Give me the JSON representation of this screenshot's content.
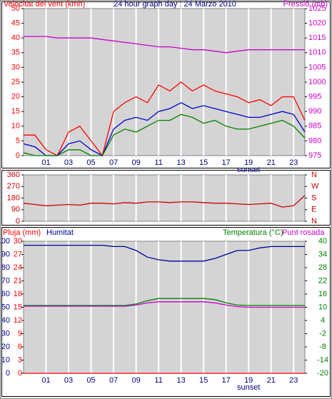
{
  "chart_data": [
    {
      "type": "line",
      "title": "24 hour graph day : 24 Marzo 2010",
      "ylabel": "Velocitat del vent (kmh)",
      "y2label": "Pressió (mb)",
      "ycolor": "#ff0000",
      "y2color": "#cc00cc",
      "x": [
        -1,
        0,
        1,
        2,
        3,
        4,
        5,
        6,
        7,
        8,
        9,
        10,
        11,
        12,
        13,
        14,
        15,
        16,
        17,
        18,
        19,
        20,
        21,
        22,
        23,
        24
      ],
      "xlim": [
        -1,
        24
      ],
      "xticks": [
        {
          "value": 1,
          "label": "01"
        },
        {
          "value": 3,
          "label": "03"
        },
        {
          "value": 5,
          "label": "05"
        },
        {
          "value": 7,
          "label": "07"
        },
        {
          "value": 9,
          "label": "09"
        },
        11,
        13,
        15,
        17,
        19,
        21,
        23
      ],
      "ylim": [
        0,
        50
      ],
      "yticks": [
        0,
        5,
        10,
        15,
        20,
        25,
        30,
        35,
        40,
        45,
        50
      ],
      "y2lim": [
        975,
        1025
      ],
      "y2ticks": [
        975,
        980,
        985,
        990,
        995,
        1000,
        1005,
        1010,
        1015,
        1020,
        1025
      ],
      "annotations": [
        {
          "text": "sunset",
          "x": 19
        }
      ],
      "series": [
        {
          "color": "#ff0000",
          "values": [
            7,
            7,
            2,
            0,
            8,
            10,
            5,
            0,
            15,
            18,
            20,
            18,
            24,
            22,
            25,
            22,
            24,
            22,
            21,
            20,
            18,
            19,
            17,
            20,
            20,
            12
          ]
        },
        {
          "color": "#0000cc",
          "values": [
            4,
            3,
            0,
            0,
            4,
            5,
            2,
            0,
            9,
            12,
            13,
            12,
            15,
            16,
            18,
            16,
            17,
            16,
            15,
            14,
            13,
            13,
            14,
            15,
            14,
            8
          ]
        },
        {
          "color": "#008000",
          "values": [
            1,
            0,
            0,
            0,
            2,
            2,
            0,
            0,
            7,
            9,
            8,
            10,
            12,
            12,
            14,
            13,
            11,
            12,
            10,
            9,
            9,
            10,
            11,
            12,
            10,
            6
          ]
        },
        {
          "color": "#cc00cc",
          "axis": "y2",
          "values": [
            1015.5,
            1015.5,
            1015.5,
            1015,
            1015,
            1015,
            1015,
            1014.5,
            1014,
            1013.5,
            1013,
            1012.5,
            1012,
            1012,
            1011.5,
            1011,
            1011,
            1010.5,
            1010,
            1010.5,
            1011,
            1011,
            1011,
            1011,
            1011,
            1011
          ]
        }
      ]
    },
    {
      "type": "line",
      "ycolor": "#cc0000",
      "y2color": "#cc0000",
      "x": [
        -1,
        0,
        1,
        2,
        3,
        4,
        5,
        6,
        7,
        8,
        9,
        10,
        11,
        12,
        13,
        14,
        15,
        16,
        17,
        18,
        19,
        20,
        21,
        22,
        23,
        24
      ],
      "xlim": [
        -1,
        24
      ],
      "xticks": [
        1,
        3,
        5,
        7,
        9,
        11,
        13,
        15,
        17,
        19,
        21,
        23
      ],
      "show_xtick_labels": false,
      "ylim": [
        0,
        360
      ],
      "yticks": [
        0,
        90,
        180,
        270,
        360
      ],
      "y2lim": [
        0,
        360
      ],
      "y2ticks": [
        {
          "value": 0,
          "label": "N"
        },
        {
          "value": 90,
          "label": "E"
        },
        {
          "value": 180,
          "label": "S"
        },
        {
          "value": 270,
          "label": "W"
        },
        {
          "value": 360,
          "label": "N"
        }
      ],
      "series": [
        {
          "color": "#cc0000",
          "values": [
            140,
            130,
            120,
            125,
            130,
            125,
            140,
            140,
            135,
            145,
            140,
            150,
            150,
            145,
            150,
            150,
            145,
            140,
            140,
            135,
            130,
            135,
            140,
            110,
            120,
            200
          ]
        }
      ]
    },
    {
      "type": "line",
      "ycolor": "#000099",
      "y3color": "#ff0000",
      "y2color": "#008000",
      "x": [
        -1,
        0,
        1,
        2,
        3,
        4,
        5,
        6,
        7,
        8,
        9,
        10,
        11,
        12,
        13,
        14,
        15,
        16,
        17,
        18,
        19,
        20,
        21,
        22,
        23,
        24
      ],
      "xlim": [
        -1,
        24
      ],
      "xticks": [
        {
          "value": 1,
          "label": "01"
        },
        {
          "value": 3,
          "label": "03"
        },
        {
          "value": 5,
          "label": "05"
        },
        {
          "value": 7,
          "label": "07"
        },
        {
          "value": 9,
          "label": "09"
        },
        11,
        13,
        15,
        17,
        19,
        21,
        23
      ],
      "ylim": [
        0,
        100
      ],
      "yticks": [
        0,
        10,
        20,
        30,
        40,
        50,
        60,
        70,
        80,
        90,
        100
      ],
      "y3lim": [
        0,
        30
      ],
      "y3ticks": [
        0,
        3,
        6,
        9,
        12,
        15,
        18,
        21,
        24,
        27,
        30
      ],
      "y2lim": [
        -20,
        40
      ],
      "y2ticks": [
        -20,
        -14,
        -8,
        -2,
        4,
        10,
        16,
        22,
        28,
        34,
        40
      ],
      "annotations": [
        {
          "text": "sunset",
          "x": 19
        }
      ],
      "series": [
        {
          "name": "Pluja (mm)",
          "color": "#ff0000",
          "axis": "y3",
          "values": [
            0,
            0,
            0,
            0,
            0,
            0,
            0,
            0,
            0,
            0,
            0,
            0,
            0,
            0,
            0,
            0,
            0,
            0,
            0,
            0,
            0,
            0,
            0,
            0,
            0,
            0
          ]
        },
        {
          "name": "Humitat",
          "color": "#000099",
          "values": [
            97,
            97,
            97,
            97,
            97,
            97,
            97,
            97,
            96,
            96,
            93,
            88,
            86,
            85,
            85,
            85,
            85,
            87,
            90,
            93,
            93,
            95,
            96,
            96,
            96,
            96
          ]
        },
        {
          "name": "Temperatura (°C)",
          "color": "#008000",
          "axis": "y2",
          "values": [
            10.8,
            10.8,
            10.8,
            10.8,
            10.8,
            10.8,
            10.8,
            10.8,
            10.8,
            10.8,
            11.5,
            13,
            14,
            14,
            14,
            14,
            14,
            13.5,
            12,
            11,
            10.8,
            10.8,
            10.8,
            10.8,
            10.8,
            10.8
          ]
        },
        {
          "name": "Punt rosada",
          "color": "#cc00cc",
          "axis": "y2",
          "values": [
            10.5,
            10.5,
            10.5,
            10.5,
            10.5,
            10.5,
            10.5,
            10.5,
            10.5,
            10.5,
            11,
            12,
            12.5,
            12.5,
            12.5,
            12.5,
            12.5,
            12,
            11,
            10.3,
            10,
            10,
            10,
            10,
            10,
            10
          ]
        }
      ]
    }
  ]
}
